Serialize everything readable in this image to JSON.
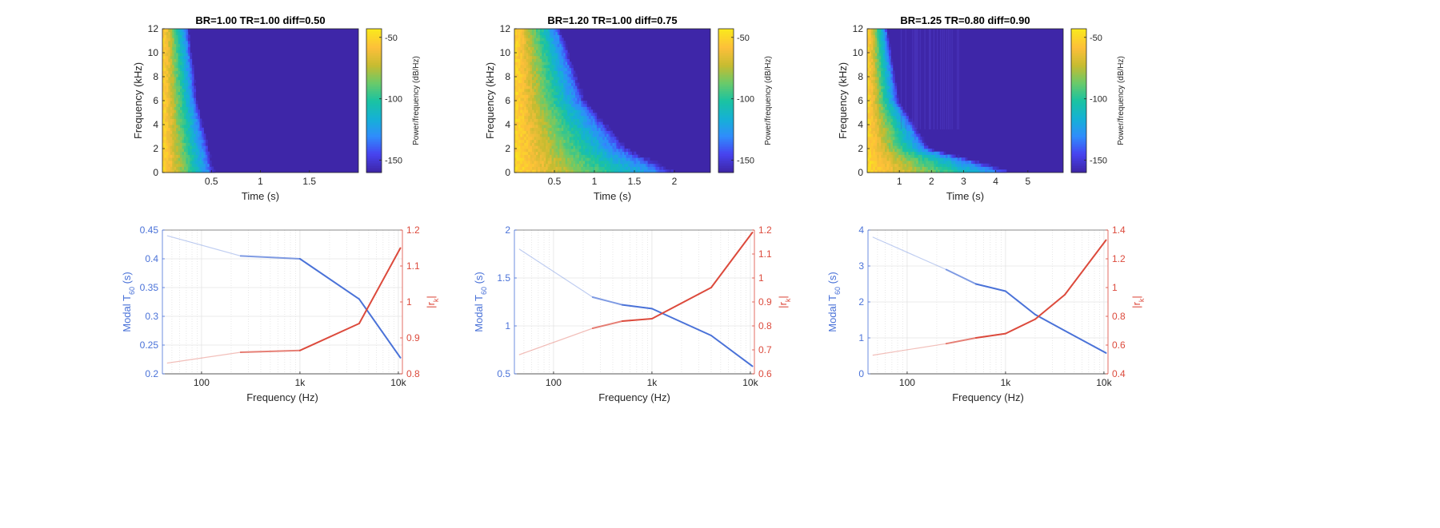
{
  "colormap_stops": [
    "#3e26a8",
    "#4743f0",
    "#2f8dfc",
    "#15b1d5",
    "#1ac3a2",
    "#69ca6a",
    "#c6bc30",
    "#fdbf3a",
    "#fae61e"
  ],
  "chart_data": [
    {
      "type": "heatmap",
      "title": "BR=1.00  TR=1.00  diff=0.50",
      "xlabel": "Time (s)",
      "ylabel": "Frequency (kHz)",
      "xlim": [
        0,
        2.0
      ],
      "ylim": [
        0,
        12
      ],
      "x_ticks": [
        0.5,
        1,
        1.5
      ],
      "x_ticklabels": [
        "0.5",
        "1",
        "1.5"
      ],
      "y_ticks": [
        0,
        2,
        4,
        6,
        8,
        10,
        12
      ],
      "y_ticklabels": [
        "0",
        "2",
        "4",
        "6",
        "8",
        "10",
        "12"
      ],
      "colorbar_label": "Power/frequency (dB/Hz)",
      "clim": [
        -160,
        -43
      ],
      "colorbar_ticks": [
        -50,
        -100,
        -150
      ],
      "colorbar_ticklabels": [
        "-50",
        "-100",
        "-150"
      ],
      "decay_front_time_s": [
        {
          "f": 0,
          "t": 0.6
        },
        {
          "f": 6,
          "t": 0.4
        },
        {
          "f": 12,
          "t": 0.3
        }
      ],
      "vertical_streaks": false
    },
    {
      "type": "heatmap",
      "title": "BR=1.20  TR=1.00  diff=0.75",
      "xlabel": "Time (s)",
      "ylabel": "Frequency (kHz)",
      "xlim": [
        0,
        2.45
      ],
      "ylim": [
        0,
        12
      ],
      "x_ticks": [
        0.5,
        1,
        1.5,
        2
      ],
      "x_ticklabels": [
        "0.5",
        "1",
        "1.5",
        "2"
      ],
      "y_ticks": [
        0,
        2,
        4,
        6,
        8,
        10,
        12
      ],
      "y_ticklabels": [
        "0",
        "2",
        "4",
        "6",
        "8",
        "10",
        "12"
      ],
      "colorbar_label": "Power/frequency (dB/Hz)",
      "clim": [
        -160,
        -43
      ],
      "colorbar_ticks": [
        -50,
        -100,
        -150
      ],
      "colorbar_ticklabels": [
        "-50",
        "-100",
        "-150"
      ],
      "decay_front_time_s": [
        {
          "f": 0,
          "t": 2.3
        },
        {
          "f": 2,
          "t": 1.6
        },
        {
          "f": 6,
          "t": 1.0
        },
        {
          "f": 12,
          "t": 0.65
        }
      ],
      "vertical_streaks": false
    },
    {
      "type": "heatmap",
      "title": "BR=1.25  TR=0.80  diff=0.90",
      "xlabel": "Time (s)",
      "ylabel": "Frequency (kHz)",
      "xlim": [
        0,
        6.1
      ],
      "ylim": [
        0,
        12
      ],
      "x_ticks": [
        1,
        2,
        3,
        4,
        5
      ],
      "x_ticklabels": [
        "1",
        "2",
        "3",
        "4",
        "5"
      ],
      "y_ticks": [
        0,
        2,
        4,
        6,
        8,
        10,
        12
      ],
      "y_ticklabels": [
        "0",
        "2",
        "4",
        "6",
        "8",
        "10",
        "12"
      ],
      "colorbar_label": "Power/frequency (dB/Hz)",
      "clim": [
        -160,
        -43
      ],
      "colorbar_ticks": [
        -50,
        -100,
        -150
      ],
      "colorbar_ticklabels": [
        "-50",
        "-100",
        "-150"
      ],
      "decay_front_time_s": [
        {
          "f": 0,
          "t": 5.2
        },
        {
          "f": 1,
          "t": 3.8
        },
        {
          "f": 2,
          "t": 2.2
        },
        {
          "f": 6,
          "t": 1.1
        },
        {
          "f": 12,
          "t": 0.7
        }
      ],
      "vertical_streaks": true
    },
    {
      "type": "line",
      "xscale": "log",
      "xlabel": "Frequency (Hz)",
      "ylabel_left": "Modal T60 (s)",
      "ylabel_right": "|rk|",
      "xlim": [
        40,
        11000
      ],
      "ylim_left": [
        0.2,
        0.45
      ],
      "ylim_right": [
        0.8,
        1.2
      ],
      "x_ticks": [
        100,
        1000,
        10000
      ],
      "x_ticklabels": [
        "100",
        "1k",
        "10k"
      ],
      "y_left_ticks": [
        0.2,
        0.25,
        0.3,
        0.35,
        0.4,
        0.45
      ],
      "y_left_ticklabels": [
        "0.2",
        "0.25",
        "0.3",
        "0.35",
        "0.4",
        "0.45"
      ],
      "y_right_ticks": [
        0.8,
        0.9,
        1.0,
        1.1,
        1.2
      ],
      "y_right_ticklabels": [
        "0.8",
        "0.9",
        "1",
        "1.1",
        "1.2"
      ],
      "color_left": "#4a72d8",
      "color_right": "#dc4a3c",
      "series": [
        {
          "axis": "left",
          "x": [
            45,
            250,
            1000,
            4000,
            10500
          ],
          "values": [
            0.44,
            0.405,
            0.4,
            0.33,
            0.228
          ]
        },
        {
          "axis": "right",
          "x": [
            45,
            250,
            1000,
            4000,
            10500
          ],
          "values": [
            0.83,
            0.86,
            0.865,
            0.94,
            1.15
          ]
        }
      ]
    },
    {
      "type": "line",
      "xscale": "log",
      "xlabel": "Frequency (Hz)",
      "ylabel_left": "Modal T60 (s)",
      "ylabel_right": "|rk|",
      "xlim": [
        40,
        11000
      ],
      "ylim_left": [
        0.5,
        2
      ],
      "ylim_right": [
        0.6,
        1.2
      ],
      "x_ticks": [
        100,
        1000,
        10000
      ],
      "x_ticklabels": [
        "100",
        "1k",
        "10k"
      ],
      "y_left_ticks": [
        0.5,
        1,
        1.5,
        2
      ],
      "y_left_ticklabels": [
        "0.5",
        "1",
        "1.5",
        "2"
      ],
      "y_right_ticks": [
        0.6,
        0.7,
        0.8,
        0.9,
        1.0,
        1.1,
        1.2
      ],
      "y_right_ticklabels": [
        "0.6",
        "0.7",
        "0.8",
        "0.9",
        "1",
        "1.1",
        "1.2"
      ],
      "color_left": "#4a72d8",
      "color_right": "#dc4a3c",
      "series": [
        {
          "axis": "left",
          "x": [
            45,
            250,
            500,
            1000,
            4000,
            10500
          ],
          "values": [
            1.8,
            1.3,
            1.22,
            1.18,
            0.9,
            0.58
          ]
        },
        {
          "axis": "right",
          "x": [
            45,
            250,
            500,
            1000,
            4000,
            10500
          ],
          "values": [
            0.68,
            0.79,
            0.82,
            0.83,
            0.96,
            1.19
          ]
        }
      ]
    },
    {
      "type": "line",
      "xscale": "log",
      "xlabel": "Frequency (Hz)",
      "ylabel_left": "Modal T60 (s)",
      "ylabel_right": "|rk|",
      "xlim": [
        40,
        11000
      ],
      "ylim_left": [
        0,
        4
      ],
      "ylim_right": [
        0.4,
        1.4
      ],
      "x_ticks": [
        100,
        1000,
        10000
      ],
      "x_ticklabels": [
        "100",
        "1k",
        "10k"
      ],
      "y_left_ticks": [
        0,
        1,
        2,
        3,
        4
      ],
      "y_left_ticklabels": [
        "0",
        "1",
        "2",
        "3",
        "4"
      ],
      "y_right_ticks": [
        0.4,
        0.6,
        0.8,
        1.0,
        1.2,
        1.4
      ],
      "y_right_ticklabels": [
        "0.4",
        "0.6",
        "0.8",
        "1",
        "1.2",
        "1.4"
      ],
      "color_left": "#4a72d8",
      "color_right": "#dc4a3c",
      "series": [
        {
          "axis": "left",
          "x": [
            45,
            250,
            500,
            1000,
            2000,
            4000,
            10500
          ],
          "values": [
            3.8,
            2.9,
            2.5,
            2.3,
            1.65,
            1.2,
            0.58
          ]
        },
        {
          "axis": "right",
          "x": [
            45,
            250,
            500,
            1000,
            2000,
            4000,
            10500
          ],
          "values": [
            0.53,
            0.61,
            0.65,
            0.68,
            0.78,
            0.95,
            1.33
          ]
        }
      ]
    }
  ]
}
